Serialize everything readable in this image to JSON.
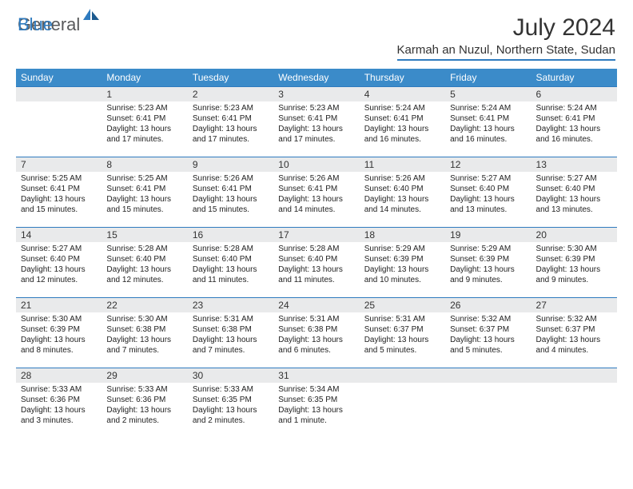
{
  "brand": {
    "general": "General",
    "blue": "Blue"
  },
  "title": "July 2024",
  "location": "Karmah an Nuzul, Northern State, Sudan",
  "colors": {
    "header_bg": "#3b8bc9",
    "accent": "#2f7bbf",
    "daynum_bg": "#e9eaeb",
    "text": "#222222",
    "logo_gray": "#58595b"
  },
  "day_headers": [
    "Sunday",
    "Monday",
    "Tuesday",
    "Wednesday",
    "Thursday",
    "Friday",
    "Saturday"
  ],
  "weeks": [
    [
      null,
      {
        "n": "1",
        "sr": "Sunrise: 5:23 AM",
        "ss": "Sunset: 6:41 PM",
        "dl": "Daylight: 13 hours and 17 minutes."
      },
      {
        "n": "2",
        "sr": "Sunrise: 5:23 AM",
        "ss": "Sunset: 6:41 PM",
        "dl": "Daylight: 13 hours and 17 minutes."
      },
      {
        "n": "3",
        "sr": "Sunrise: 5:23 AM",
        "ss": "Sunset: 6:41 PM",
        "dl": "Daylight: 13 hours and 17 minutes."
      },
      {
        "n": "4",
        "sr": "Sunrise: 5:24 AM",
        "ss": "Sunset: 6:41 PM",
        "dl": "Daylight: 13 hours and 16 minutes."
      },
      {
        "n": "5",
        "sr": "Sunrise: 5:24 AM",
        "ss": "Sunset: 6:41 PM",
        "dl": "Daylight: 13 hours and 16 minutes."
      },
      {
        "n": "6",
        "sr": "Sunrise: 5:24 AM",
        "ss": "Sunset: 6:41 PM",
        "dl": "Daylight: 13 hours and 16 minutes."
      }
    ],
    [
      {
        "n": "7",
        "sr": "Sunrise: 5:25 AM",
        "ss": "Sunset: 6:41 PM",
        "dl": "Daylight: 13 hours and 15 minutes."
      },
      {
        "n": "8",
        "sr": "Sunrise: 5:25 AM",
        "ss": "Sunset: 6:41 PM",
        "dl": "Daylight: 13 hours and 15 minutes."
      },
      {
        "n": "9",
        "sr": "Sunrise: 5:26 AM",
        "ss": "Sunset: 6:41 PM",
        "dl": "Daylight: 13 hours and 15 minutes."
      },
      {
        "n": "10",
        "sr": "Sunrise: 5:26 AM",
        "ss": "Sunset: 6:41 PM",
        "dl": "Daylight: 13 hours and 14 minutes."
      },
      {
        "n": "11",
        "sr": "Sunrise: 5:26 AM",
        "ss": "Sunset: 6:40 PM",
        "dl": "Daylight: 13 hours and 14 minutes."
      },
      {
        "n": "12",
        "sr": "Sunrise: 5:27 AM",
        "ss": "Sunset: 6:40 PM",
        "dl": "Daylight: 13 hours and 13 minutes."
      },
      {
        "n": "13",
        "sr": "Sunrise: 5:27 AM",
        "ss": "Sunset: 6:40 PM",
        "dl": "Daylight: 13 hours and 13 minutes."
      }
    ],
    [
      {
        "n": "14",
        "sr": "Sunrise: 5:27 AM",
        "ss": "Sunset: 6:40 PM",
        "dl": "Daylight: 13 hours and 12 minutes."
      },
      {
        "n": "15",
        "sr": "Sunrise: 5:28 AM",
        "ss": "Sunset: 6:40 PM",
        "dl": "Daylight: 13 hours and 12 minutes."
      },
      {
        "n": "16",
        "sr": "Sunrise: 5:28 AM",
        "ss": "Sunset: 6:40 PM",
        "dl": "Daylight: 13 hours and 11 minutes."
      },
      {
        "n": "17",
        "sr": "Sunrise: 5:28 AM",
        "ss": "Sunset: 6:40 PM",
        "dl": "Daylight: 13 hours and 11 minutes."
      },
      {
        "n": "18",
        "sr": "Sunrise: 5:29 AM",
        "ss": "Sunset: 6:39 PM",
        "dl": "Daylight: 13 hours and 10 minutes."
      },
      {
        "n": "19",
        "sr": "Sunrise: 5:29 AM",
        "ss": "Sunset: 6:39 PM",
        "dl": "Daylight: 13 hours and 9 minutes."
      },
      {
        "n": "20",
        "sr": "Sunrise: 5:30 AM",
        "ss": "Sunset: 6:39 PM",
        "dl": "Daylight: 13 hours and 9 minutes."
      }
    ],
    [
      {
        "n": "21",
        "sr": "Sunrise: 5:30 AM",
        "ss": "Sunset: 6:39 PM",
        "dl": "Daylight: 13 hours and 8 minutes."
      },
      {
        "n": "22",
        "sr": "Sunrise: 5:30 AM",
        "ss": "Sunset: 6:38 PM",
        "dl": "Daylight: 13 hours and 7 minutes."
      },
      {
        "n": "23",
        "sr": "Sunrise: 5:31 AM",
        "ss": "Sunset: 6:38 PM",
        "dl": "Daylight: 13 hours and 7 minutes."
      },
      {
        "n": "24",
        "sr": "Sunrise: 5:31 AM",
        "ss": "Sunset: 6:38 PM",
        "dl": "Daylight: 13 hours and 6 minutes."
      },
      {
        "n": "25",
        "sr": "Sunrise: 5:31 AM",
        "ss": "Sunset: 6:37 PM",
        "dl": "Daylight: 13 hours and 5 minutes."
      },
      {
        "n": "26",
        "sr": "Sunrise: 5:32 AM",
        "ss": "Sunset: 6:37 PM",
        "dl": "Daylight: 13 hours and 5 minutes."
      },
      {
        "n": "27",
        "sr": "Sunrise: 5:32 AM",
        "ss": "Sunset: 6:37 PM",
        "dl": "Daylight: 13 hours and 4 minutes."
      }
    ],
    [
      {
        "n": "28",
        "sr": "Sunrise: 5:33 AM",
        "ss": "Sunset: 6:36 PM",
        "dl": "Daylight: 13 hours and 3 minutes."
      },
      {
        "n": "29",
        "sr": "Sunrise: 5:33 AM",
        "ss": "Sunset: 6:36 PM",
        "dl": "Daylight: 13 hours and 2 minutes."
      },
      {
        "n": "30",
        "sr": "Sunrise: 5:33 AM",
        "ss": "Sunset: 6:35 PM",
        "dl": "Daylight: 13 hours and 2 minutes."
      },
      {
        "n": "31",
        "sr": "Sunrise: 5:34 AM",
        "ss": "Sunset: 6:35 PM",
        "dl": "Daylight: 13 hours and 1 minute."
      },
      null,
      null,
      null
    ]
  ]
}
